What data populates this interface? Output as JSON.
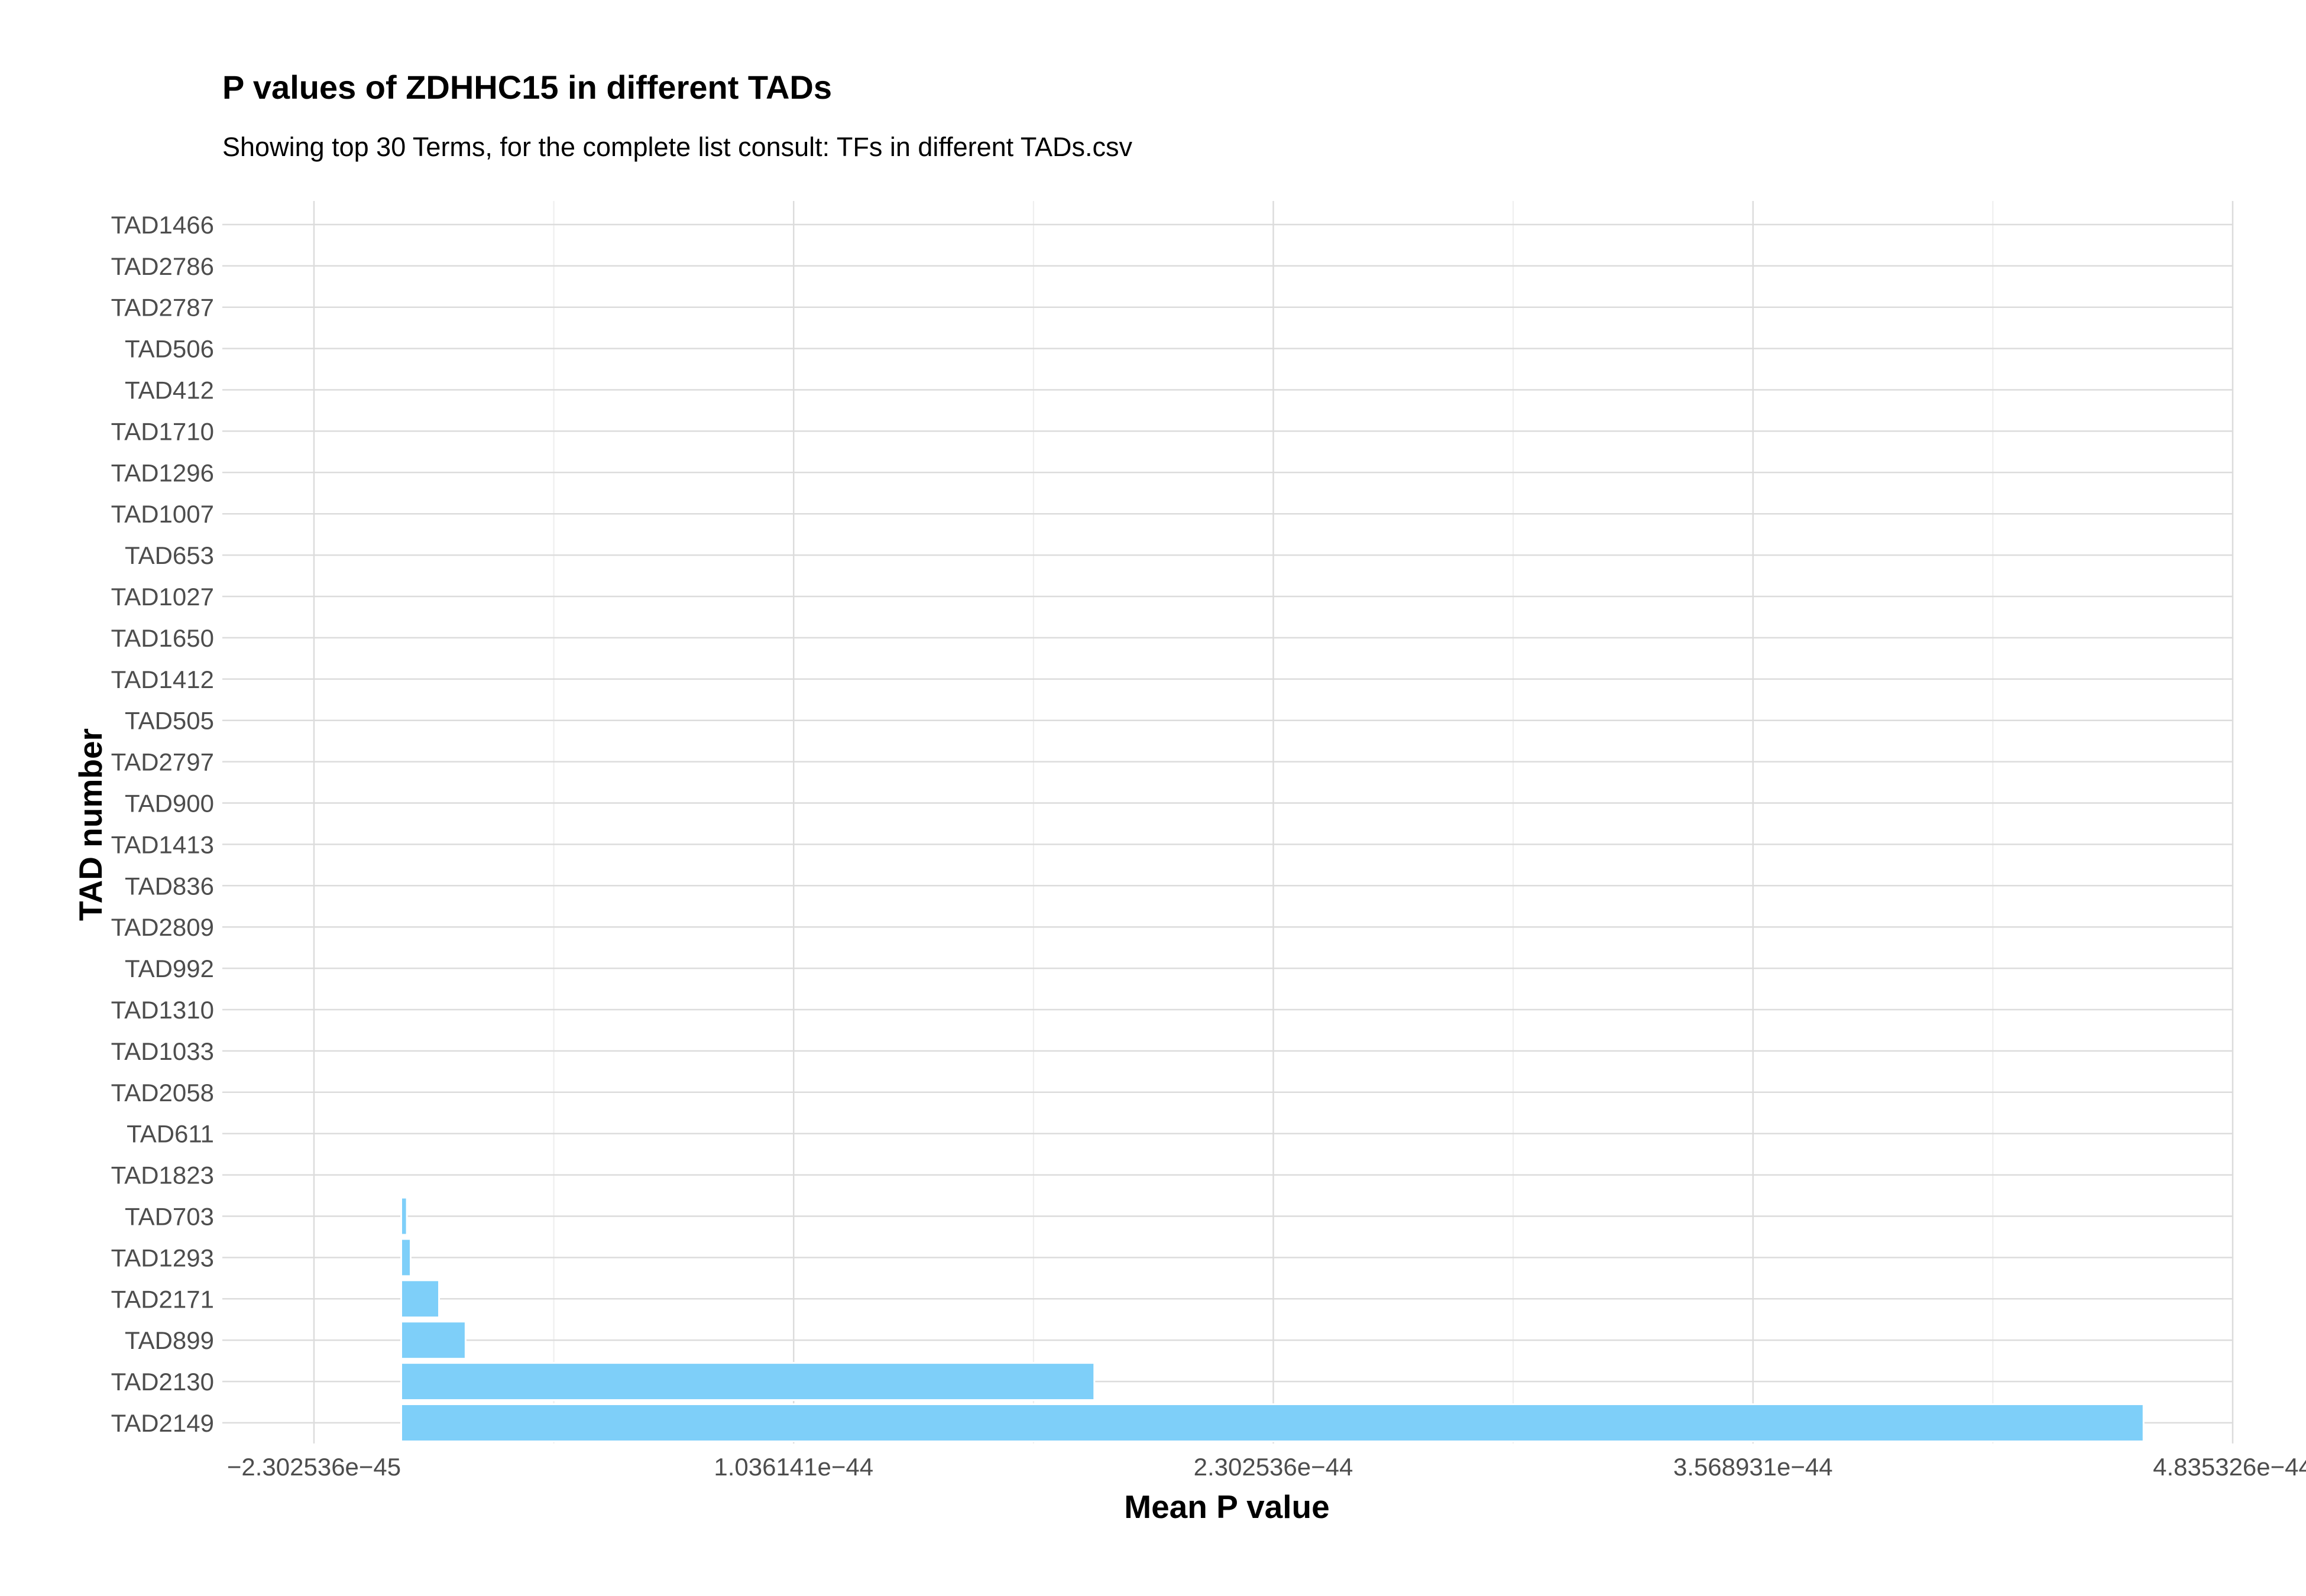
{
  "chart_data": {
    "type": "bar",
    "orientation": "horizontal",
    "title": "P values of ZDHHC15 in different TADs",
    "subtitle": "Showing top 30 Terms, for the complete list consult: TFs in different TADs.csv",
    "xlabel": "Mean P value",
    "ylabel": "TAD number",
    "x_tick_labels": [
      "−2.302536e−45",
      "1.036141e−44",
      "2.302536e−44",
      "3.568931e−44",
      "4.835326e−44"
    ],
    "x_ticks": [
      -2.302536e-45,
      1.036141e-44,
      2.302536e-44,
      3.568931e-44,
      4.835326e-44
    ],
    "xlim": [
      -2.302536e-45,
      4.835326e-44
    ],
    "categories": [
      "TAD2149",
      "TAD2130",
      "TAD899",
      "TAD2171",
      "TAD1293",
      "TAD703",
      "TAD1823",
      "TAD611",
      "TAD2058",
      "TAD1033",
      "TAD1310",
      "TAD992",
      "TAD2809",
      "TAD836",
      "TAD1413",
      "TAD900",
      "TAD2797",
      "TAD505",
      "TAD1412",
      "TAD1650",
      "TAD1027",
      "TAD653",
      "TAD1007",
      "TAD1296",
      "TAD1710",
      "TAD412",
      "TAD506",
      "TAD2787",
      "TAD2786",
      "TAD1466"
    ],
    "values": [
      4.6e-44,
      1.83e-44,
      1.7e-45,
      1e-45,
      2.5e-46,
      1.5e-46,
      3e-48,
      2e-48,
      1.5e-48,
      1.2e-48,
      1e-48,
      8e-49,
      7e-49,
      6e-49,
      5e-49,
      4e-49,
      3e-49,
      2.5e-49,
      2e-49,
      1.5e-49,
      1.2e-49,
      1e-49,
      8e-50,
      6e-50,
      5e-50,
      4e-50,
      3e-50,
      2e-50,
      1e-50,
      5e-51
    ],
    "color": "#7ecff9",
    "grid": true,
    "legend": "none"
  }
}
